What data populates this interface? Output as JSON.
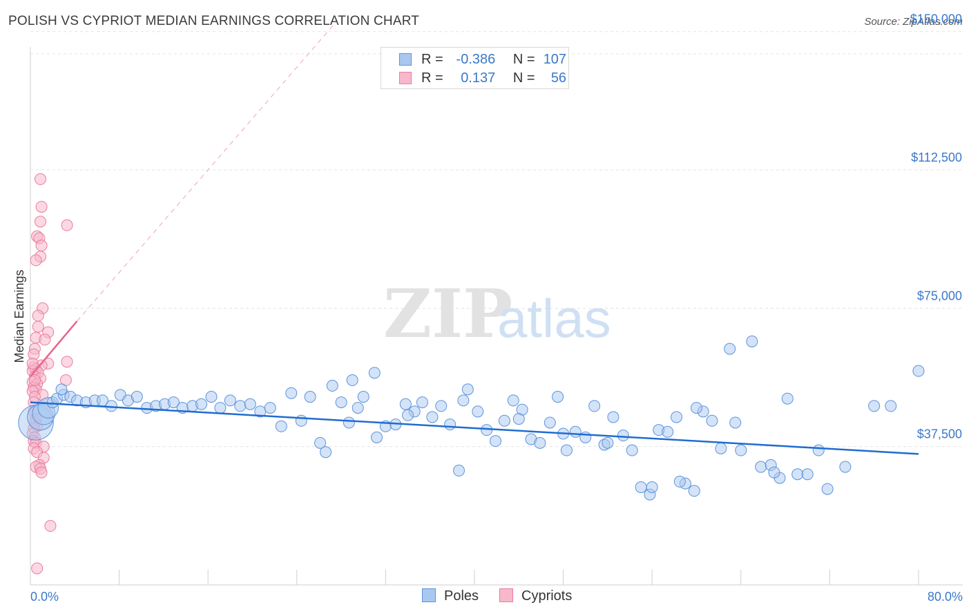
{
  "title": "POLISH VS CYPRIOT MEDIAN EARNINGS CORRELATION CHART",
  "source": "Source: ZipAtlas.com",
  "watermark": {
    "zip": "ZIP",
    "atlas": "atlas"
  },
  "colors": {
    "poles_fill": "#a9c8f0",
    "poles_stroke": "#5b93db",
    "poles_line": "#1f6ccf",
    "cypriots_fill": "#f7b8cb",
    "cypriots_stroke": "#e87d9f",
    "cypriots_line": "#e8638b",
    "axis_label": "#3a78c9",
    "grid": "#e3e3e3"
  },
  "legend": {
    "rows": [
      {
        "r_label": "R =",
        "r_value": "-0.386",
        "n_label": "N =",
        "n_value": "107"
      },
      {
        "r_label": "R =",
        "r_value": "0.137",
        "n_label": "N =",
        "n_value": "56"
      }
    ]
  },
  "bottom_legend": {
    "poles": "Poles",
    "cypriots": "Cypriots"
  },
  "chart_data": {
    "type": "scatter",
    "title": "POLISH VS CYPRIOT MEDIAN EARNINGS CORRELATION CHART",
    "xlabel": "",
    "ylabel": "Median Earnings",
    "xlim": [
      0,
      80
    ],
    "ylim": [
      0,
      155000
    ],
    "x_tick_labels": [
      "0.0%",
      "80.0%"
    ],
    "y_ticks": [
      37500,
      75000,
      112500,
      150000
    ],
    "y_tick_labels": [
      "$37,500",
      "$75,000",
      "$112,500",
      "$150,000"
    ],
    "grid": true,
    "legend_position": "top-center",
    "series": [
      {
        "name": "Poles",
        "r": -0.386,
        "n": 107,
        "trend": {
          "x": [
            0,
            80
          ],
          "y": [
            49500,
            35500
          ]
        },
        "points": [
          [
            0.5,
            44000,
            2.4
          ],
          [
            0.9,
            45500,
            1.6
          ],
          [
            1.2,
            46500,
            1.3
          ],
          [
            1.6,
            48000,
            1.1
          ],
          [
            2.0,
            49500,
            1.0
          ],
          [
            2.4,
            50500,
            1.0
          ],
          [
            3.0,
            51500,
            1.0
          ],
          [
            3.6,
            51000,
            1.0
          ],
          [
            4.2,
            50000,
            1.0
          ],
          [
            2.8,
            53000,
            1.0
          ],
          [
            5.0,
            49500,
            1.0
          ],
          [
            5.8,
            50000,
            1.0
          ],
          [
            6.5,
            50000,
            1.0
          ],
          [
            7.3,
            48500,
            1.0
          ],
          [
            8.1,
            51500,
            1.0
          ],
          [
            8.8,
            50000,
            1.0
          ],
          [
            9.6,
            51000,
            1.0
          ],
          [
            10.5,
            48000,
            1.0
          ],
          [
            11.3,
            48500,
            1.0
          ],
          [
            12.1,
            49000,
            1.0
          ],
          [
            12.9,
            49500,
            1.0
          ],
          [
            13.7,
            48000,
            1.0
          ],
          [
            14.6,
            48500,
            1.0
          ],
          [
            15.4,
            49000,
            1.0
          ],
          [
            16.3,
            51000,
            1.0
          ],
          [
            17.1,
            48000,
            1.0
          ],
          [
            18.0,
            50000,
            1.0
          ],
          [
            18.9,
            48500,
            1.0
          ],
          [
            19.8,
            49000,
            1.0
          ],
          [
            20.7,
            47000,
            1.0
          ],
          [
            21.6,
            48000,
            1.0
          ],
          [
            22.6,
            43000,
            1.0
          ],
          [
            23.5,
            52000,
            1.0
          ],
          [
            24.4,
            44500,
            1.0
          ],
          [
            25.2,
            51000,
            1.0
          ],
          [
            26.1,
            38500,
            1.0
          ],
          [
            26.6,
            36000,
            1.0
          ],
          [
            27.2,
            54000,
            1.0
          ],
          [
            28.0,
            49500,
            1.0
          ],
          [
            28.7,
            44000,
            1.0
          ],
          [
            29.5,
            48000,
            1.0
          ],
          [
            30.0,
            51000,
            1.0
          ],
          [
            31.2,
            40000,
            1.0
          ],
          [
            32.0,
            43000,
            1.0
          ],
          [
            32.9,
            43500,
            1.0
          ],
          [
            33.8,
            49000,
            1.0
          ],
          [
            34.6,
            47000,
            1.0
          ],
          [
            35.3,
            49500,
            1.0
          ],
          [
            36.2,
            45500,
            1.0
          ],
          [
            37.0,
            48500,
            1.0
          ],
          [
            37.8,
            43500,
            1.0
          ],
          [
            38.6,
            31000,
            1.0
          ],
          [
            39.4,
            53000,
            1.0
          ],
          [
            40.3,
            47000,
            1.0
          ],
          [
            41.1,
            42000,
            1.0
          ],
          [
            41.9,
            39000,
            1.0
          ],
          [
            42.7,
            44500,
            1.0
          ],
          [
            43.5,
            50000,
            1.0
          ],
          [
            44.3,
            47500,
            1.0
          ],
          [
            45.1,
            39500,
            1.0
          ],
          [
            45.9,
            38500,
            1.0
          ],
          [
            46.8,
            44000,
            1.0
          ],
          [
            47.5,
            51000,
            1.0
          ],
          [
            48.3,
            36500,
            1.0
          ],
          [
            49.1,
            41500,
            1.0
          ],
          [
            50.0,
            40000,
            1.0
          ],
          [
            50.8,
            48500,
            1.0
          ],
          [
            51.7,
            38000,
            1.0
          ],
          [
            52.5,
            45500,
            1.0
          ],
          [
            53.4,
            40500,
            1.0
          ],
          [
            54.2,
            36500,
            1.0
          ],
          [
            55.0,
            26500,
            1.0
          ],
          [
            55.8,
            24500,
            1.0
          ],
          [
            56.6,
            42000,
            1.0
          ],
          [
            57.4,
            41500,
            1.0
          ],
          [
            58.2,
            45500,
            1.0
          ],
          [
            59.0,
            27500,
            1.0
          ],
          [
            59.8,
            25500,
            1.0
          ],
          [
            60.6,
            47000,
            1.0
          ],
          [
            61.4,
            44500,
            1.0
          ],
          [
            62.2,
            37000,
            1.0
          ],
          [
            63.0,
            64000,
            1.0
          ],
          [
            64.0,
            36500,
            1.0
          ],
          [
            65.0,
            66000,
            1.0
          ],
          [
            65.8,
            32000,
            1.0
          ],
          [
            66.7,
            32500,
            1.0
          ],
          [
            67.5,
            29000,
            1.0
          ],
          [
            68.2,
            50500,
            1.0
          ],
          [
            69.1,
            30000,
            1.0
          ],
          [
            70.0,
            30000,
            1.0
          ],
          [
            71.0,
            36500,
            1.0
          ],
          [
            71.8,
            26000,
            1.0
          ],
          [
            73.4,
            32000,
            1.0
          ],
          [
            76.0,
            48500,
            1.0
          ],
          [
            77.5,
            48500,
            1.0
          ],
          [
            80.0,
            58000,
            1.0
          ],
          [
            31.0,
            57500,
            1.0
          ],
          [
            29.0,
            55500,
            1.0
          ],
          [
            34.0,
            46000,
            1.0
          ],
          [
            39.0,
            50000,
            1.0
          ],
          [
            44.0,
            45000,
            1.0
          ],
          [
            48.0,
            41000,
            1.0
          ],
          [
            52.0,
            38500,
            1.0
          ],
          [
            56.0,
            26500,
            1.0
          ],
          [
            60.0,
            48000,
            1.0
          ],
          [
            63.5,
            44000,
            1.0
          ],
          [
            67.0,
            30500,
            1.0
          ],
          [
            58.5,
            28000,
            1.0
          ]
        ]
      },
      {
        "name": "Cypriots",
        "r": 0.137,
        "n": 56,
        "trend": {
          "x": [
            0,
            4.2
          ],
          "y": [
            56500,
            71500
          ]
        },
        "points": [
          [
            0.9,
            110000,
            1.0
          ],
          [
            1.0,
            102500,
            1.0
          ],
          [
            3.3,
            97500,
            1.0
          ],
          [
            0.9,
            98500,
            1.0
          ],
          [
            0.6,
            94500,
            1.0
          ],
          [
            0.8,
            94000,
            1.0
          ],
          [
            1.0,
            92000,
            1.0
          ],
          [
            0.9,
            89000,
            1.0
          ],
          [
            0.5,
            88000,
            1.0
          ],
          [
            1.1,
            75000,
            1.0
          ],
          [
            0.7,
            73000,
            1.0
          ],
          [
            0.7,
            70000,
            1.0
          ],
          [
            1.6,
            68500,
            1.0
          ],
          [
            0.5,
            67000,
            1.0
          ],
          [
            1.3,
            66500,
            1.0
          ],
          [
            0.4,
            64000,
            1.0
          ],
          [
            0.3,
            62500,
            1.0
          ],
          [
            1.6,
            60000,
            1.0
          ],
          [
            3.3,
            60500,
            1.0
          ],
          [
            0.3,
            59000,
            1.0
          ],
          [
            1.0,
            59500,
            1.0
          ],
          [
            0.5,
            58500,
            1.0
          ],
          [
            0.2,
            58000,
            1.0
          ],
          [
            0.7,
            57500,
            1.0
          ],
          [
            0.4,
            56500,
            1.0
          ],
          [
            0.9,
            56000,
            1.0
          ],
          [
            3.2,
            55500,
            1.0
          ],
          [
            0.2,
            55000,
            1.0
          ],
          [
            0.6,
            54500,
            1.0
          ],
          [
            0.3,
            53500,
            1.0
          ],
          [
            0.5,
            53000,
            1.0
          ],
          [
            0.2,
            52500,
            1.0
          ],
          [
            1.1,
            51500,
            1.0
          ],
          [
            0.4,
            51000,
            1.0
          ],
          [
            0.3,
            49500,
            1.0
          ],
          [
            0.3,
            47000,
            1.0
          ],
          [
            0.5,
            45000,
            1.0
          ],
          [
            0.4,
            44000,
            1.0
          ],
          [
            0.6,
            43000,
            1.0
          ],
          [
            0.3,
            42500,
            1.0
          ],
          [
            0.2,
            41000,
            1.0
          ],
          [
            0.4,
            40000,
            1.0
          ],
          [
            0.3,
            39000,
            1.0
          ],
          [
            0.5,
            38500,
            1.0
          ],
          [
            1.2,
            37500,
            1.0
          ],
          [
            0.3,
            37000,
            1.0
          ],
          [
            0.6,
            36000,
            1.0
          ],
          [
            1.2,
            34500,
            1.0
          ],
          [
            0.8,
            32500,
            1.0
          ],
          [
            0.5,
            32000,
            1.0
          ],
          [
            0.9,
            31500,
            1.0
          ],
          [
            1.0,
            30500,
            1.0
          ],
          [
            1.8,
            16000,
            1.0
          ],
          [
            0.6,
            4500,
            1.0
          ],
          [
            0.2,
            60000,
            1.0
          ],
          [
            0.4,
            55500,
            1.0
          ]
        ]
      }
    ]
  }
}
